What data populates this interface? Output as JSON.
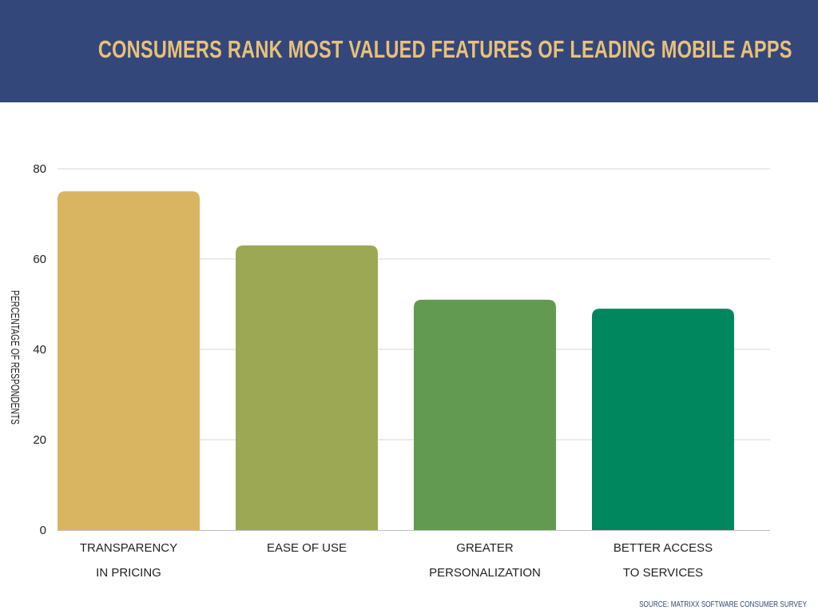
{
  "title": "CONSUMERS RANK MOST VALUED FEATURES OF LEADING MOBILE APPS",
  "source": "SOURCE: MATRIXX SOFTWARE CONSUMER SURVEY",
  "colors": {
    "header_bg": "#34477a",
    "title": "#e8c17a",
    "bars": [
      "#d9b562",
      "#9da854",
      "#629a52",
      "#00875d"
    ]
  },
  "chart_data": {
    "type": "bar",
    "categories": [
      [
        "TRANSPARENCY",
        "IN PRICING"
      ],
      [
        "EASE OF USE"
      ],
      [
        "GREATER",
        "PERSONALIZATION"
      ],
      [
        "BETTER ACCESS",
        "TO SERVICES"
      ]
    ],
    "values": [
      75,
      63,
      51,
      49
    ],
    "xlabel": "",
    "ylabel": "PERCENTAGE OF RESPONDENTS",
    "ylim": [
      0,
      80
    ],
    "yticks": [
      0,
      20,
      40,
      60,
      80
    ],
    "grid": true,
    "legend": "none"
  }
}
